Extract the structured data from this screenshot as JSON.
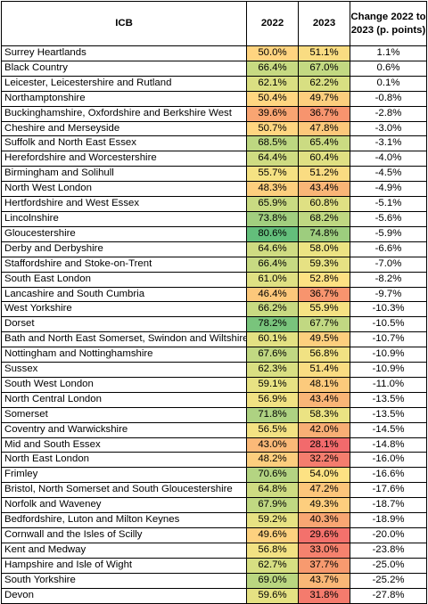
{
  "headers": {
    "icb": "ICB",
    "y2022": "2022",
    "y2023": "2023",
    "change": "Change 2022 to 2023 (p. points)"
  },
  "rows": [
    {
      "icb": "Surrey Heartlands",
      "v2022": "50.0%",
      "v2023": "51.1%",
      "change": "1.1%",
      "c2022": "#ffd480",
      "c2023": "#f9dc82"
    },
    {
      "icb": "Black Country",
      "v2022": "66.4%",
      "v2023": "67.0%",
      "change": "0.6%",
      "c2022": "#c7da82",
      "c2023": "#c3d982"
    },
    {
      "icb": "Leicester, Leicestershire and Rutland",
      "v2022": "62.1%",
      "v2023": "62.2%",
      "change": "0.1%",
      "c2022": "#dadf82",
      "c2023": "#d8df82"
    },
    {
      "icb": "Northamptonshire",
      "v2022": "50.4%",
      "v2023": "49.7%",
      "change": "-0.8%",
      "c2022": "#ffd681",
      "c2023": "#fcce7e"
    },
    {
      "icb": "Buckinghamshire, Oxfordshire and Berkshire West",
      "v2022": "39.6%",
      "v2023": "36.7%",
      "change": "-2.8%",
      "c2022": "#f9a572",
      "c2023": "#f7946e"
    },
    {
      "icb": "Cheshire and Merseyside",
      "v2022": "50.7%",
      "v2023": "47.8%",
      "change": "-3.0%",
      "c2022": "#ffd681",
      "c2023": "#fcc87b"
    },
    {
      "icb": "Suffolk and North East Essex",
      "v2022": "68.5%",
      "v2023": "65.4%",
      "change": "-3.1%",
      "c2022": "#bdd781",
      "c2023": "#cbdb82"
    },
    {
      "icb": "Herefordshire and Worcestershire",
      "v2022": "64.4%",
      "v2023": "60.4%",
      "change": "-4.0%",
      "c2022": "#cfdc82",
      "c2023": "#e0e083"
    },
    {
      "icb": "Birmingham and Solihull",
      "v2022": "55.7%",
      "v2023": "51.2%",
      "change": "-4.5%",
      "c2022": "#f5e283",
      "c2023": "#fadc82"
    },
    {
      "icb": "North West London",
      "v2022": "48.3%",
      "v2023": "43.4%",
      "change": "-4.9%",
      "c2022": "#fdcf7e",
      "c2023": "#f9b577"
    },
    {
      "icb": "Hertfordshire and West Essex",
      "v2022": "65.9%",
      "v2023": "60.8%",
      "change": "-5.1%",
      "c2022": "#c9db82",
      "c2023": "#dfe083"
    },
    {
      "icb": "Lincolnshire",
      "v2022": "73.8%",
      "v2023": "68.2%",
      "change": "-5.6%",
      "c2022": "#a2cf7f",
      "c2023": "#bfd882"
    },
    {
      "icb": "Gloucestershire",
      "v2022": "80.6%",
      "v2023": "74.8%",
      "change": "-5.9%",
      "c2022": "#63be7b",
      "c2023": "#9dcd7e"
    },
    {
      "icb": "Derby and Derbyshire",
      "v2022": "64.6%",
      "v2023": "58.0%",
      "change": "-6.6%",
      "c2022": "#cfdc82",
      "c2023": "#ece383"
    },
    {
      "icb": "Staffordshire and Stoke-on-Trent",
      "v2022": "66.4%",
      "v2023": "59.3%",
      "change": "-7.0%",
      "c2022": "#c7da82",
      "c2023": "#e6e183"
    },
    {
      "icb": "South East London",
      "v2022": "61.0%",
      "v2023": "52.8%",
      "change": "-8.2%",
      "c2022": "#dfe083",
      "c2023": "#fde183"
    },
    {
      "icb": "Lancashire and South Cumbria",
      "v2022": "46.4%",
      "v2023": "36.7%",
      "change": "-9.7%",
      "c2022": "#fcc87b",
      "c2023": "#f7946e"
    },
    {
      "icb": "West Yorkshire",
      "v2022": "66.2%",
      "v2023": "55.9%",
      "change": "-10.3%",
      "c2022": "#c8da82",
      "c2023": "#f5e283"
    },
    {
      "icb": "Dorset",
      "v2022": "78.2%",
      "v2023": "67.7%",
      "change": "-10.5%",
      "c2022": "#79c47c",
      "c2023": "#c1d882"
    },
    {
      "icb": "Bath and North East Somerset, Swindon and Wiltshire",
      "v2022": "60.1%",
      "v2023": "49.5%",
      "change": "-10.7%",
      "c2022": "#e3e183",
      "c2023": "#fdcf7e"
    },
    {
      "icb": "Nottingham and Nottinghamshire",
      "v2022": "67.6%",
      "v2023": "56.8%",
      "change": "-10.9%",
      "c2022": "#c1d882",
      "c2023": "#f1e283"
    },
    {
      "icb": "Sussex",
      "v2022": "62.3%",
      "v2023": "51.4%",
      "change": "-10.9%",
      "c2022": "#d9df82",
      "c2023": "#fadc82"
    },
    {
      "icb": "South West London",
      "v2022": "59.1%",
      "v2023": "48.1%",
      "change": "-11.0%",
      "c2022": "#e7e283",
      "c2023": "#fcca7c"
    },
    {
      "icb": "North Central London",
      "v2022": "56.9%",
      "v2023": "43.4%",
      "change": "-13.5%",
      "c2022": "#f1e283",
      "c2023": "#f9b577"
    },
    {
      "icb": "Somerset",
      "v2022": "71.8%",
      "v2023": "58.3%",
      "change": "-13.5%",
      "c2022": "#aed282",
      "c2023": "#ebe383"
    },
    {
      "icb": "Coventry and Warwickshire",
      "v2022": "56.5%",
      "v2023": "42.0%",
      "change": "-14.5%",
      "c2022": "#f3e283",
      "c2023": "#f8ae75"
    },
    {
      "icb": "Mid and South Essex",
      "v2022": "43.0%",
      "v2023": "28.1%",
      "change": "-14.8%",
      "c2022": "#fbb978",
      "c2023": "#f26a6c"
    },
    {
      "icb": "North East London",
      "v2022": "48.2%",
      "v2023": "32.2%",
      "change": "-16.0%",
      "c2022": "#fcce7e",
      "c2023": "#f47d6e"
    },
    {
      "icb": "Frimley",
      "v2022": "70.6%",
      "v2023": "54.0%",
      "change": "-16.6%",
      "c2022": "#b4d482",
      "c2023": "#fde283"
    },
    {
      "icb": "Bristol, North Somerset and South Gloucestershire",
      "v2022": "64.8%",
      "v2023": "47.2%",
      "change": "-17.6%",
      "c2022": "#cedc82",
      "c2023": "#fcc57b"
    },
    {
      "icb": "Norfolk and Waveney",
      "v2022": "67.9%",
      "v2023": "49.3%",
      "change": "-18.7%",
      "c2022": "#c0d882",
      "c2023": "#fdce7e"
    },
    {
      "icb": "Bedfordshire, Luton and Milton Keynes",
      "v2022": "59.2%",
      "v2023": "40.3%",
      "change": "-18.9%",
      "c2022": "#e7e283",
      "c2023": "#f8a673"
    },
    {
      "icb": "Cornwall and the Isles of Scilly",
      "v2022": "49.6%",
      "v2023": "29.6%",
      "change": "-20.0%",
      "c2022": "#fdd17f",
      "c2023": "#f3716c"
    },
    {
      "icb": "Kent and Medway",
      "v2022": "56.8%",
      "v2023": "33.0%",
      "change": "-23.8%",
      "c2022": "#f2e283",
      "c2023": "#f5826e"
    },
    {
      "icb": "Hampshire and Isle of Wight",
      "v2022": "62.7%",
      "v2023": "37.7%",
      "change": "-25.0%",
      "c2022": "#d7df82",
      "c2023": "#f79a6f"
    },
    {
      "icb": "South Yorkshire",
      "v2022": "69.0%",
      "v2023": "43.7%",
      "change": "-25.2%",
      "c2022": "#bad680",
      "c2023": "#f9b777"
    },
    {
      "icb": "Devon",
      "v2022": "59.6%",
      "v2023": "31.8%",
      "change": "-27.8%",
      "c2022": "#e5e183",
      "c2023": "#f47b6d"
    }
  ]
}
